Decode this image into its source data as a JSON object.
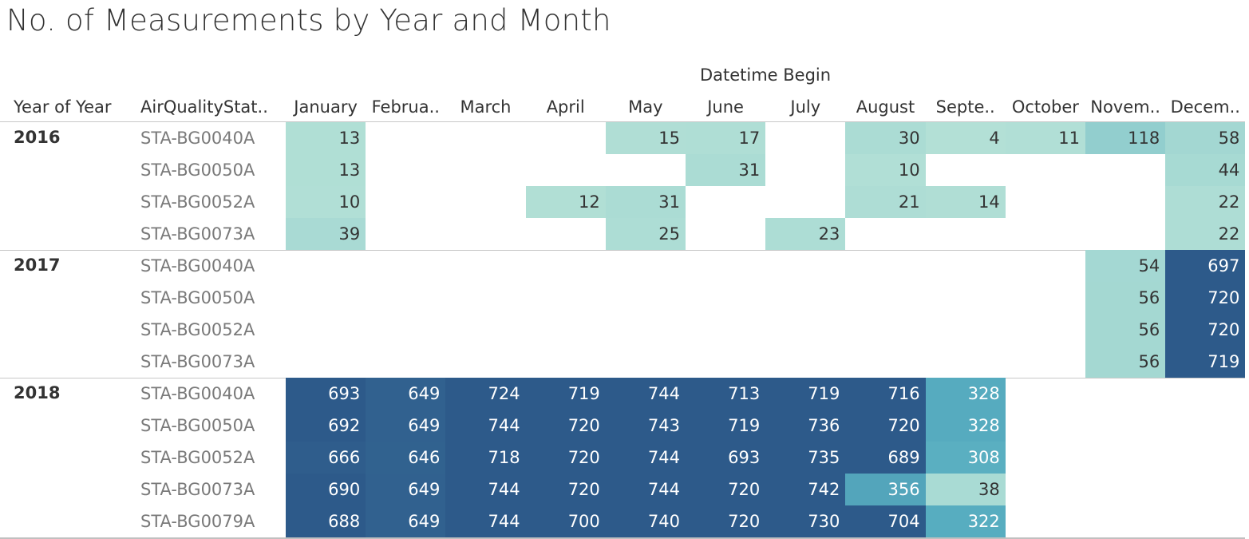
{
  "title": "No. of Measurements by Year and Month",
  "column_header_group": "Datetime Begin",
  "row_header_labels": [
    "Year of Year",
    "AirQualityStat.."
  ],
  "chart_data": {
    "type": "heatmap",
    "title": "No. of Measurements by Year and Month",
    "column_field": "Datetime Begin",
    "row_fields": [
      "Year of Year",
      "AirQualityStat.."
    ],
    "months": [
      "January",
      "Februa..",
      "March",
      "April",
      "May",
      "June",
      "July",
      "August",
      "Septe..",
      "October",
      "Novem..",
      "Decem.."
    ],
    "color_scale": {
      "low": "#b3e0d6",
      "mid": "#57adc0",
      "high": "#2d5a8a",
      "text_light": "#ffffff",
      "text_dark": "#333333"
    },
    "groups": [
      {
        "year": "2016",
        "rows": [
          {
            "station": "STA-BG0040A",
            "values": [
              13,
              null,
              null,
              null,
              15,
              17,
              null,
              30,
              4,
              11,
              118,
              58
            ]
          },
          {
            "station": "STA-BG0050A",
            "values": [
              13,
              null,
              null,
              null,
              null,
              31,
              null,
              10,
              null,
              null,
              null,
              44
            ]
          },
          {
            "station": "STA-BG0052A",
            "values": [
              10,
              null,
              null,
              12,
              31,
              null,
              null,
              21,
              14,
              null,
              null,
              22
            ]
          },
          {
            "station": "STA-BG0073A",
            "values": [
              39,
              null,
              null,
              null,
              25,
              null,
              23,
              null,
              null,
              null,
              null,
              22
            ]
          }
        ]
      },
      {
        "year": "2017",
        "rows": [
          {
            "station": "STA-BG0040A",
            "values": [
              null,
              null,
              null,
              null,
              null,
              null,
              null,
              null,
              null,
              null,
              54,
              697
            ]
          },
          {
            "station": "STA-BG0050A",
            "values": [
              null,
              null,
              null,
              null,
              null,
              null,
              null,
              null,
              null,
              null,
              56,
              720
            ]
          },
          {
            "station": "STA-BG0052A",
            "values": [
              null,
              null,
              null,
              null,
              null,
              null,
              null,
              null,
              null,
              null,
              56,
              720
            ]
          },
          {
            "station": "STA-BG0073A",
            "values": [
              null,
              null,
              null,
              null,
              null,
              null,
              null,
              null,
              null,
              null,
              56,
              719
            ]
          }
        ]
      },
      {
        "year": "2018",
        "rows": [
          {
            "station": "STA-BG0040A",
            "values": [
              693,
              649,
              724,
              719,
              744,
              713,
              719,
              716,
              328,
              null,
              null,
              null
            ]
          },
          {
            "station": "STA-BG0050A",
            "values": [
              692,
              649,
              744,
              720,
              743,
              719,
              736,
              720,
              328,
              null,
              null,
              null
            ]
          },
          {
            "station": "STA-BG0052A",
            "values": [
              666,
              646,
              718,
              720,
              744,
              693,
              735,
              689,
              308,
              null,
              null,
              null
            ]
          },
          {
            "station": "STA-BG0073A",
            "values": [
              690,
              649,
              744,
              720,
              744,
              720,
              742,
              356,
              38,
              null,
              null,
              null
            ]
          },
          {
            "station": "STA-BG0079A",
            "values": [
              688,
              649,
              744,
              700,
              740,
              720,
              730,
              704,
              322,
              null,
              null,
              null
            ]
          }
        ]
      }
    ]
  }
}
